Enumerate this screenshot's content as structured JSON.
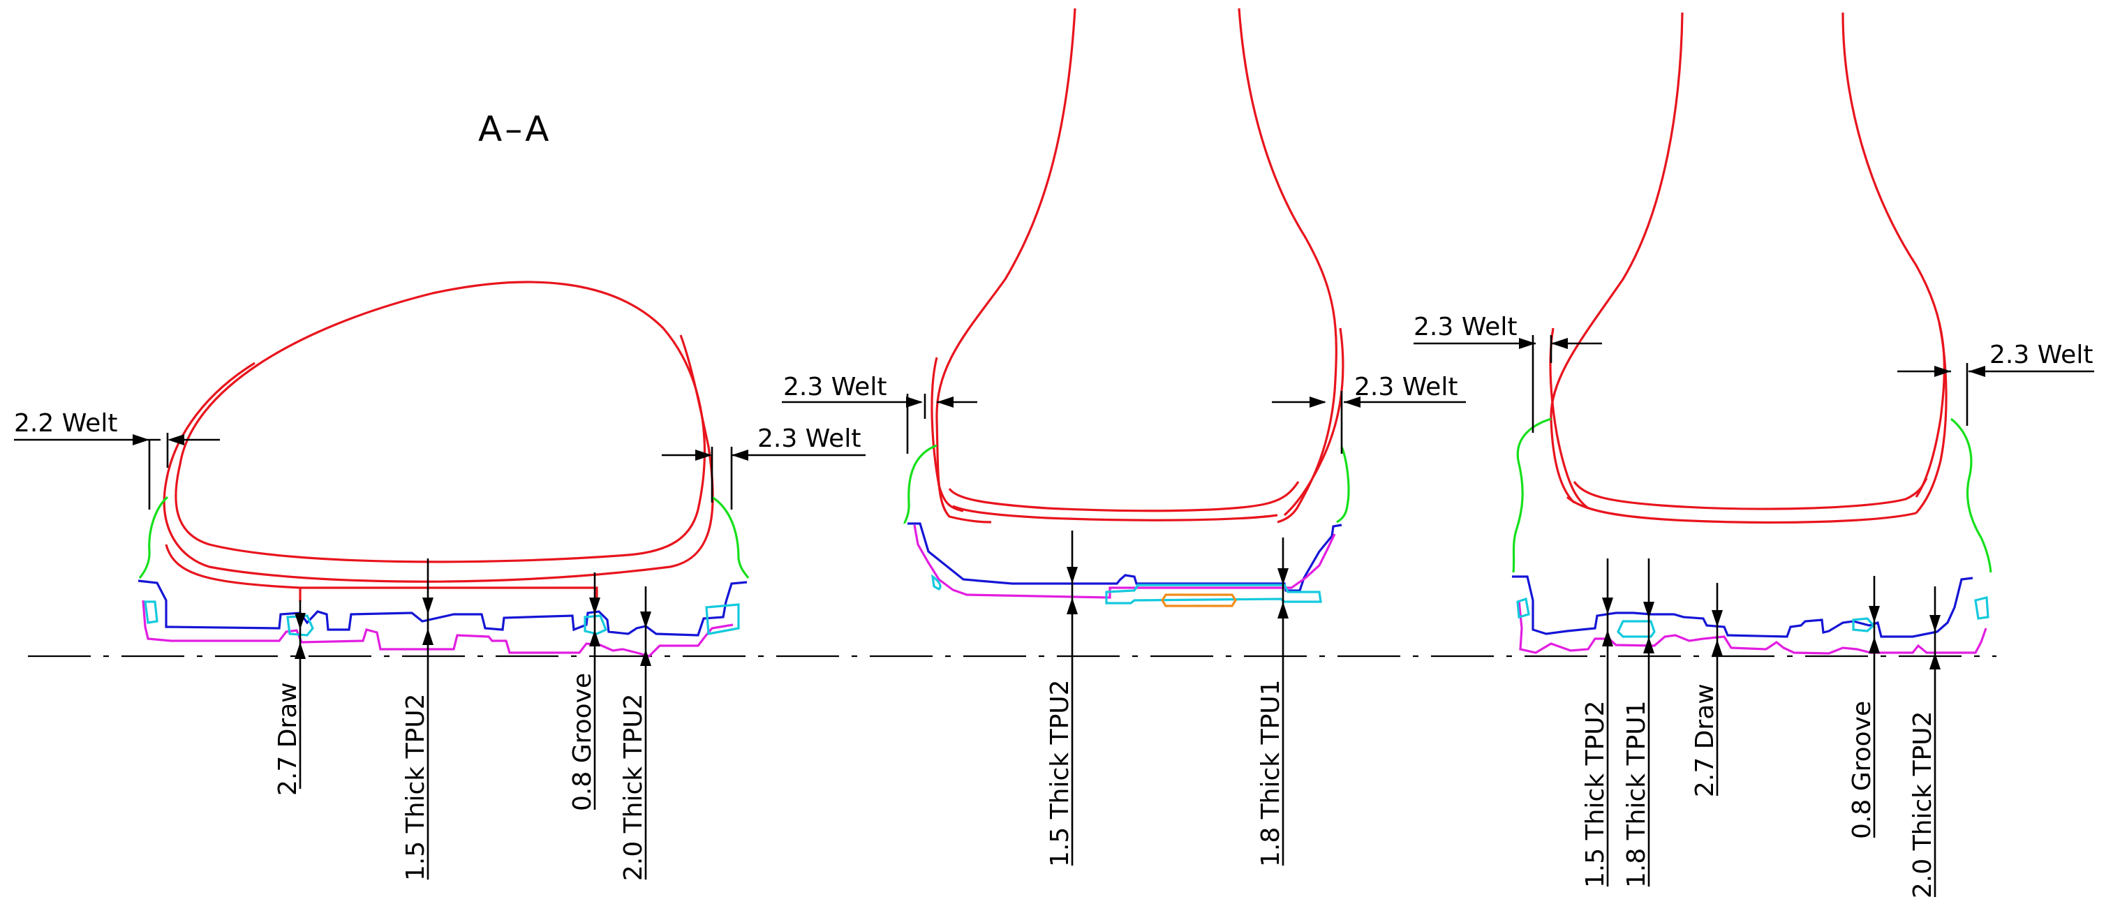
{
  "section_title": "A–A",
  "colors": {
    "upper": "#e8141d",
    "midsole": "#1515d6",
    "outsole": "#e21ee0",
    "welt": "#16e01b",
    "insert": "#14c9dd",
    "shank": "#f08c1a"
  },
  "views": {
    "left": {
      "welt_left": "2.2 Welt",
      "welt_right": "2.3 Welt",
      "draw": "2.7 Draw",
      "thick_1": "1.5 Thick TPU2",
      "groove": "0.8 Groove",
      "thick_2": "2.0 Thick TPU2"
    },
    "middle": {
      "welt_left": "2.3 Welt",
      "welt_right": "2.3 Welt",
      "thick_1": "1.5 Thick TPU2",
      "thick_2": "1.8 Thick TPU1"
    },
    "right": {
      "welt_left": "2.3 Welt",
      "welt_right": "2.3 Welt",
      "thick_1": "1.5 Thick TPU2",
      "thick_2": "1.8 Thick TPU1",
      "draw": "2.7 Draw",
      "groove": "0.8 Groove",
      "thick_3": "2.0 Thick TPU2"
    }
  }
}
